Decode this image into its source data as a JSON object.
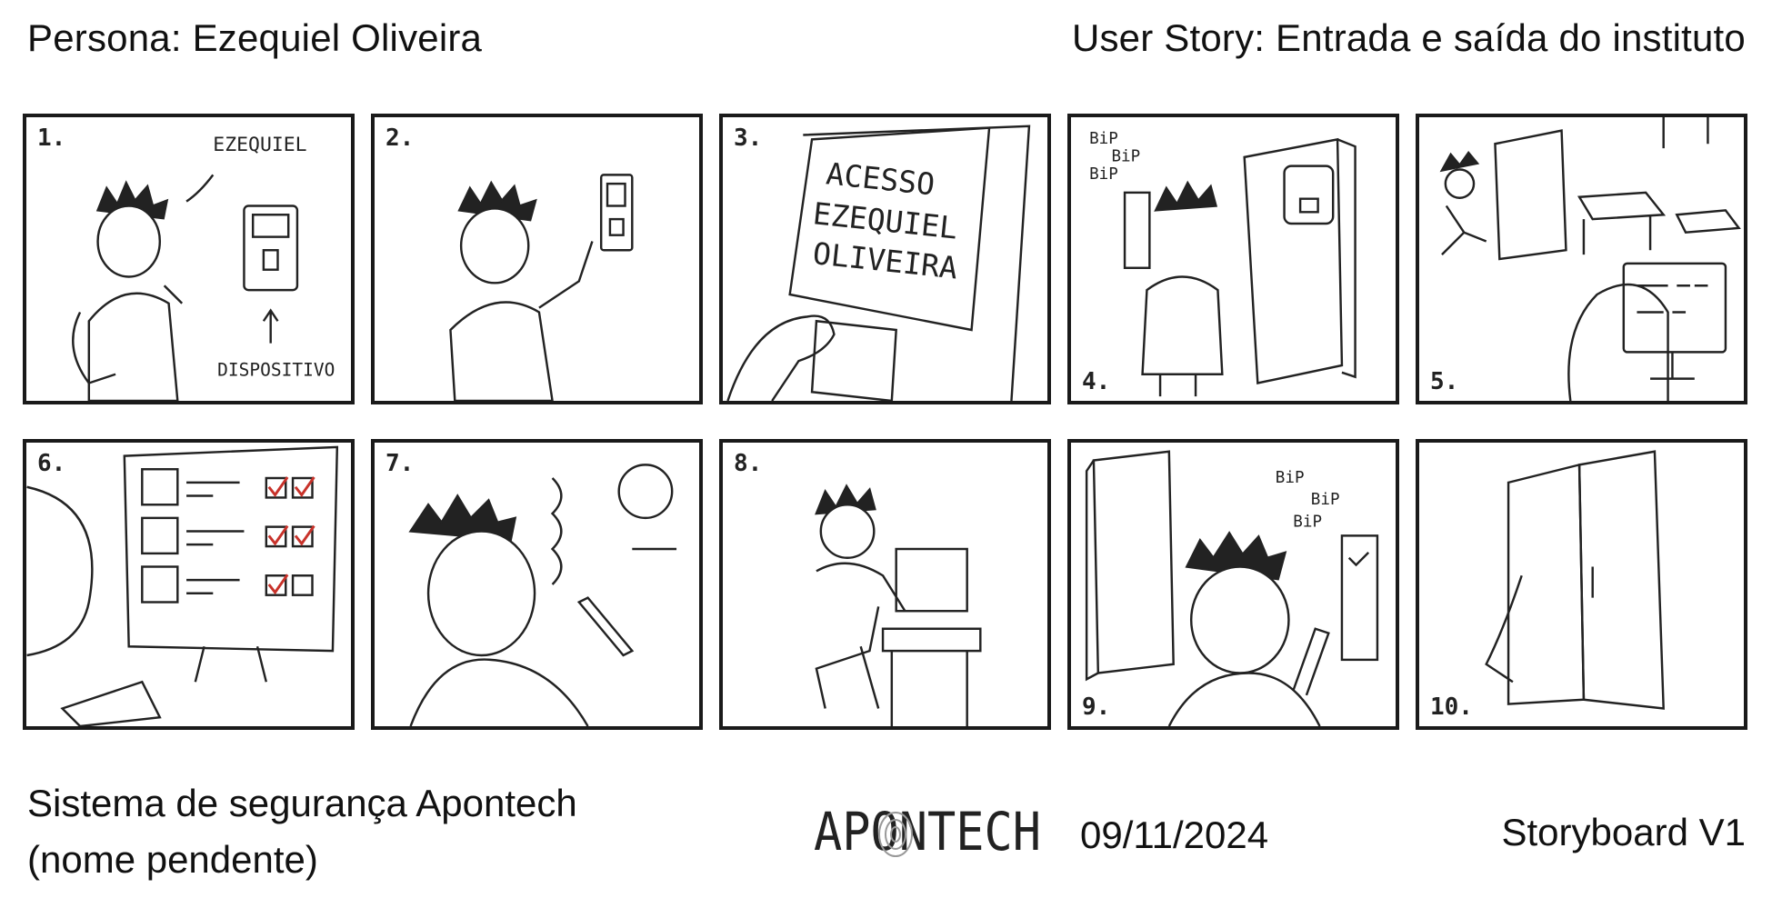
{
  "header": {
    "persona": "Persona: Ezequiel Oliveira",
    "user_story": "User Story: Entrada e saída do instituto"
  },
  "panels": [
    {
      "number": "1.",
      "labels": [
        "EZEQUIEL",
        "DISPOSITIVO"
      ]
    },
    {
      "number": "2.",
      "labels": []
    },
    {
      "number": "3.",
      "labels": [
        "ACESSO",
        "EZEQUIEL",
        "OLIVEIRA"
      ]
    },
    {
      "number": "4.",
      "labels": [
        "BiP",
        "BiP",
        "BiP"
      ]
    },
    {
      "number": "5.",
      "labels": []
    },
    {
      "number": "6.",
      "labels": []
    },
    {
      "number": "7.",
      "labels": []
    },
    {
      "number": "8.",
      "labels": []
    },
    {
      "number": "9.",
      "labels": [
        "BiP",
        "BiP",
        "BiP"
      ]
    },
    {
      "number": "10.",
      "labels": []
    }
  ],
  "footer": {
    "system_line1": "Sistema de segurança Apontech",
    "system_line2": "(nome pendente)",
    "logo_text": "APONTECH",
    "date": "09/11/2024",
    "version": "Storyboard V1"
  },
  "colors": {
    "accent_check": "#c8322a",
    "ink": "#1a1a1a"
  }
}
